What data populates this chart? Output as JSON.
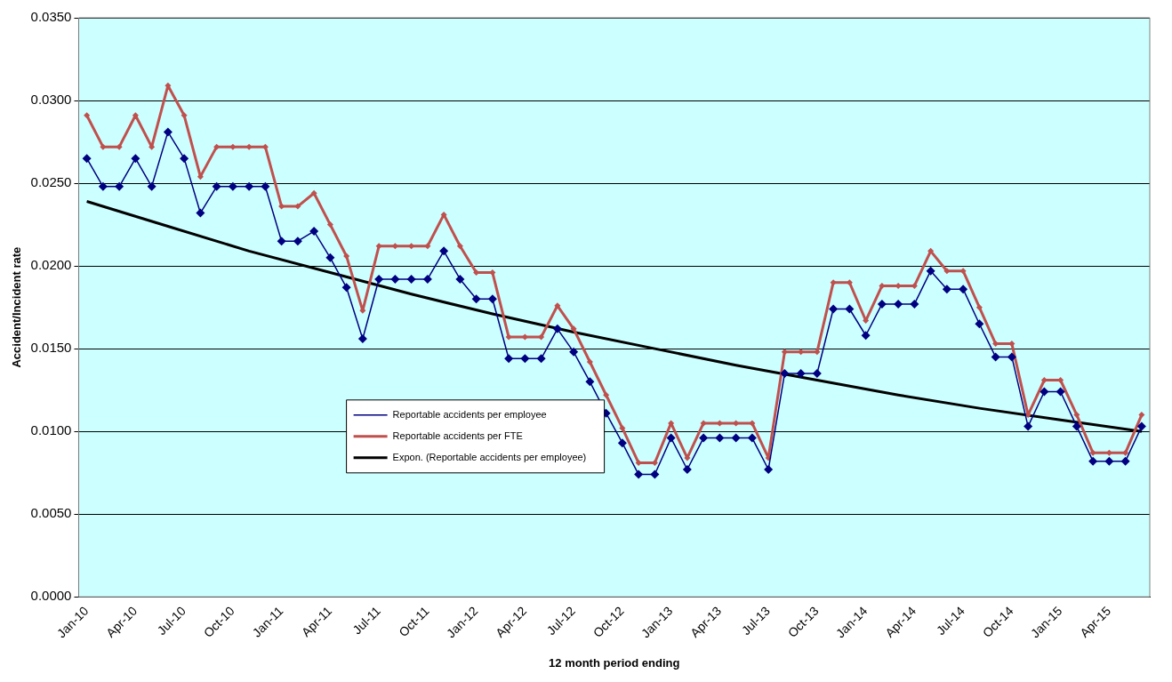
{
  "chart_data": {
    "type": "line",
    "xlabel": "12 month period ending",
    "ylabel": "Accident/Incident rate",
    "categories": [
      "Jan-10",
      null,
      null,
      "Apr-10",
      null,
      null,
      "Jul-10",
      null,
      null,
      "Oct-10",
      null,
      null,
      "Jan-11",
      null,
      null,
      "Apr-11",
      null,
      null,
      "Jul-11",
      null,
      null,
      "Oct-11",
      null,
      null,
      "Jan-12",
      null,
      null,
      "Apr-12",
      null,
      null,
      "Jul-12",
      null,
      null,
      "Oct-12",
      null,
      null,
      "Jan-13",
      null,
      null,
      "Apr-13",
      null,
      null,
      "Jul-13",
      null,
      null,
      "Oct-13",
      null,
      null,
      "Jan-14",
      null,
      null,
      "Apr-14",
      null,
      null,
      "Jul-14",
      null,
      null,
      "Oct-14",
      null,
      null,
      "Jan-15",
      null,
      null,
      "Apr-15",
      null,
      null
    ],
    "series": [
      {
        "name": "Reportable accidents per employee",
        "color": "#000080",
        "marker": "diamond",
        "values": [
          0.0265,
          0.0248,
          0.0248,
          0.0265,
          0.0248,
          0.0281,
          0.0265,
          0.0232,
          0.0248,
          0.0248,
          0.0248,
          0.0248,
          0.0215,
          0.0215,
          0.0221,
          0.0205,
          0.0187,
          0.0156,
          0.0192,
          0.0192,
          0.0192,
          0.0192,
          0.0209,
          0.0192,
          0.018,
          0.018,
          0.0144,
          0.0144,
          0.0144,
          0.0162,
          0.0148,
          0.013,
          0.0111,
          0.0093,
          0.0074,
          0.0074,
          0.0096,
          0.0077,
          0.0096,
          0.0096,
          0.0096,
          0.0096,
          0.0077,
          0.0135,
          0.0135,
          0.0135,
          0.0174,
          0.0174,
          0.0158,
          0.0177,
          0.0177,
          0.0177,
          0.0197,
          0.0186,
          0.0186,
          0.0165,
          0.0145,
          0.0145,
          0.0103,
          0.0124,
          0.0124,
          0.0103,
          0.0082,
          0.0082,
          0.0082,
          0.0103
        ]
      },
      {
        "name": "Reportable accidents per FTE",
        "color": "#c0504d",
        "marker": "diamond",
        "values": [
          0.0291,
          0.0272,
          0.0272,
          0.0291,
          0.0272,
          0.0309,
          0.0291,
          0.0254,
          0.0272,
          0.0272,
          0.0272,
          0.0272,
          0.0236,
          0.0236,
          0.0244,
          0.0225,
          0.0206,
          0.0173,
          0.0212,
          0.0212,
          0.0212,
          0.0212,
          0.0231,
          0.0212,
          0.0196,
          0.0196,
          0.0157,
          0.0157,
          0.0157,
          0.0176,
          0.0162,
          0.0142,
          0.0122,
          0.0102,
          0.0081,
          0.0081,
          0.0105,
          0.0084,
          0.0105,
          0.0105,
          0.0105,
          0.0105,
          0.0084,
          0.0148,
          0.0148,
          0.0148,
          0.019,
          0.019,
          0.0167,
          0.0188,
          0.0188,
          0.0188,
          0.0209,
          0.0197,
          0.0197,
          0.0175,
          0.0153,
          0.0153,
          0.011,
          0.0131,
          0.0131,
          0.011,
          0.0087,
          0.0087,
          0.0087,
          0.011
        ]
      },
      {
        "name": "Expon. (Reportable accidents per employee)",
        "color": "#000000",
        "marker": "none",
        "values": [
          0.0239,
          null,
          null,
          null,
          null,
          0.0224,
          null,
          null,
          null,
          null,
          0.0209,
          null,
          null,
          null,
          null,
          0.0196,
          null,
          null,
          null,
          null,
          0.0183,
          null,
          null,
          null,
          null,
          0.0171,
          null,
          null,
          null,
          null,
          0.016,
          null,
          null,
          null,
          null,
          0.015,
          null,
          null,
          null,
          null,
          0.014,
          null,
          null,
          null,
          null,
          0.0131,
          null,
          null,
          null,
          null,
          0.0122,
          null,
          null,
          null,
          null,
          0.0114,
          null,
          null,
          null,
          null,
          0.0107,
          null,
          null,
          null,
          null,
          0.01
        ]
      }
    ],
    "ylim": [
      0,
      0.035
    ],
    "yticks": [
      {
        "value": 0,
        "label": "0.0000"
      },
      {
        "value": 0.005,
        "label": "0.0050"
      },
      {
        "value": 0.01,
        "label": "0.0100"
      },
      {
        "value": 0.015,
        "label": "0.0150"
      },
      {
        "value": 0.02,
        "label": "0.0200"
      },
      {
        "value": 0.025,
        "label": "0.0250"
      },
      {
        "value": 0.03,
        "label": "0.0300"
      },
      {
        "value": 0.035,
        "label": "0.0350"
      }
    ],
    "grid": "y",
    "legend": "center"
  }
}
